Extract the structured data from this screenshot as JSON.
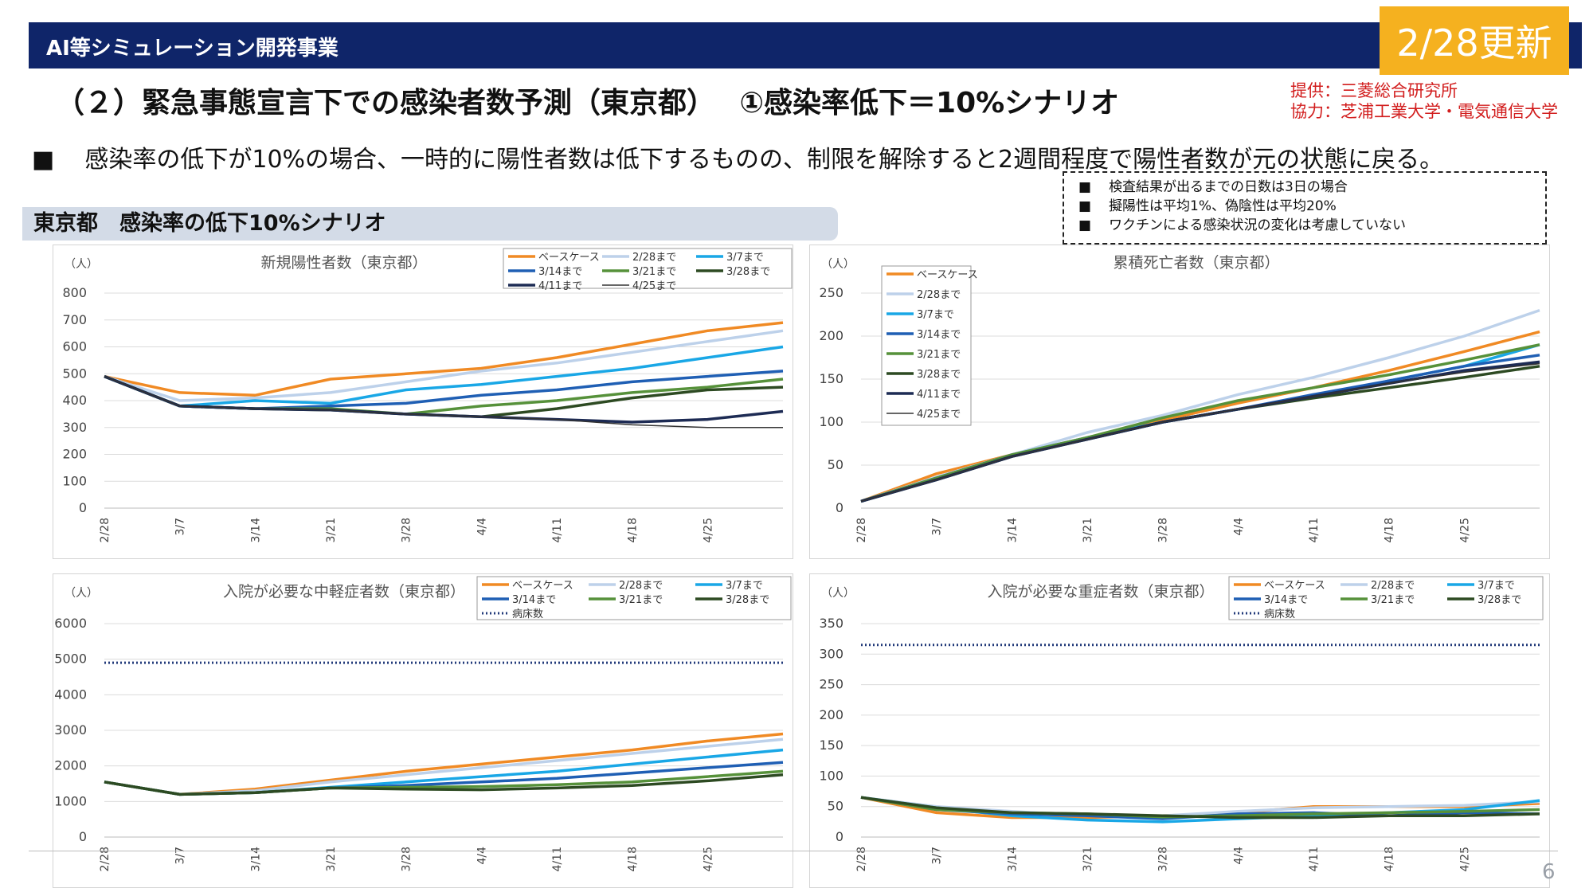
{
  "header": {
    "title": "AI等シミュレーション開発事業",
    "update_badge": "2/28更新"
  },
  "page_title": "（２）緊急事態宣言下での感染者数予測（東京都）　 ①感染率低下＝10%シナリオ",
  "credits": {
    "provider": "提供：三菱総合研究所",
    "cooperation": "協力：芝浦工業大学・電気通信大学"
  },
  "summary": {
    "bullet": "■",
    "text": "感染率の低下が10%の場合、一時的に陽性者数は低下するものの、制限を解除すると2週間程度で陽性者数が元の状態に戻る。"
  },
  "notes": {
    "bullet": "■",
    "items": [
      "検査結果が出るまでの日数は3日の場合",
      "擬陽性は平均1%、偽陰性は平均20%",
      "ワクチンによる感染状況の変化は考慮していない"
    ]
  },
  "section_label": "東京都　感染率の低下10%シナリオ",
  "page_number": "6",
  "colors": {
    "base": "#f08a24",
    "s0228": "#bdd1ea",
    "s0307": "#19a7e6",
    "s0314": "#1f5fb4",
    "s0321": "#56913a",
    "s0328": "#2d4a22",
    "s0411": "#1d2b54",
    "s0425": "#333333",
    "beds": "#223a7a",
    "grid": "#dcdcdc",
    "axis_text": "#444444"
  },
  "chart_data": [
    {
      "type": "line",
      "title": "新規陽性者数（東京都）",
      "unit": "（人）",
      "ylim": [
        0,
        800
      ],
      "yticks": [
        0,
        100,
        200,
        300,
        400,
        500,
        600,
        700,
        800
      ],
      "xlim": [
        0,
        63
      ],
      "x_ticks": [
        "2/28",
        "3/7",
        "3/14",
        "3/21",
        "3/28",
        "4/4",
        "4/11",
        "4/18",
        "4/25"
      ],
      "legend_placement": "top-right",
      "grid": true,
      "series": [
        {
          "name": "ベースケース",
          "color_key": "base",
          "x": [
            0,
            7,
            14,
            21,
            28,
            35,
            42,
            49,
            56,
            63
          ],
          "values": [
            490,
            430,
            420,
            480,
            500,
            520,
            560,
            610,
            660,
            690
          ]
        },
        {
          "name": "2/28まで",
          "color_key": "s0228",
          "x": [
            0,
            7,
            14,
            21,
            28,
            35,
            42,
            49,
            56,
            63
          ],
          "values": [
            490,
            400,
            410,
            430,
            470,
            510,
            540,
            580,
            620,
            660
          ]
        },
        {
          "name": "3/7まで",
          "color_key": "s0307",
          "x": [
            0,
            7,
            14,
            21,
            28,
            35,
            42,
            49,
            56,
            63
          ],
          "values": [
            490,
            380,
            400,
            390,
            440,
            460,
            490,
            520,
            560,
            600
          ]
        },
        {
          "name": "3/14まで",
          "color_key": "s0314",
          "x": [
            0,
            7,
            14,
            21,
            28,
            35,
            42,
            49,
            56,
            63
          ],
          "values": [
            490,
            380,
            370,
            380,
            390,
            420,
            440,
            470,
            490,
            510
          ]
        },
        {
          "name": "3/21まで",
          "color_key": "s0321",
          "x": [
            0,
            7,
            14,
            21,
            28,
            35,
            42,
            49,
            56,
            63
          ],
          "values": [
            490,
            380,
            370,
            370,
            350,
            380,
            400,
            430,
            450,
            480
          ]
        },
        {
          "name": "3/28まで",
          "color_key": "s0328",
          "x": [
            0,
            7,
            14,
            21,
            28,
            35,
            42,
            49,
            56,
            63
          ],
          "values": [
            490,
            380,
            370,
            365,
            350,
            340,
            370,
            410,
            440,
            450
          ]
        },
        {
          "name": "4/11まで",
          "color_key": "s0411",
          "x": [
            0,
            7,
            14,
            21,
            28,
            35,
            42,
            49,
            56,
            63
          ],
          "values": [
            490,
            380,
            370,
            365,
            350,
            340,
            330,
            320,
            330,
            360
          ]
        },
        {
          "name": "4/25まで",
          "color_key": "s0425",
          "thin": true,
          "x": [
            0,
            7,
            14,
            21,
            28,
            35,
            42,
            49,
            56,
            63
          ],
          "values": [
            490,
            380,
            370,
            365,
            350,
            340,
            330,
            310,
            300,
            300
          ]
        }
      ]
    },
    {
      "type": "line",
      "title": "累積死亡者数（東京都）",
      "unit": "（人）",
      "ylim": [
        0,
        250
      ],
      "yticks": [
        0,
        50,
        100,
        150,
        200,
        250
      ],
      "xlim": [
        0,
        63
      ],
      "x_ticks": [
        "2/28",
        "3/7",
        "3/14",
        "3/21",
        "3/28",
        "4/4",
        "4/11",
        "4/18",
        "4/25"
      ],
      "legend_placement": "top-left",
      "grid": true,
      "series": [
        {
          "name": "ベースケース",
          "color_key": "base",
          "x": [
            0,
            7,
            14,
            21,
            28,
            35,
            42,
            49,
            56,
            63
          ],
          "values": [
            8,
            40,
            62,
            82,
            102,
            122,
            140,
            160,
            182,
            205
          ]
        },
        {
          "name": "2/28まで",
          "color_key": "s0228",
          "x": [
            0,
            7,
            14,
            21,
            28,
            35,
            42,
            49,
            56,
            63
          ],
          "values": [
            8,
            36,
            62,
            88,
            108,
            132,
            152,
            175,
            200,
            230
          ]
        },
        {
          "name": "3/7まで",
          "color_key": "s0307",
          "x": [
            0,
            7,
            14,
            21,
            28,
            35,
            42,
            49,
            56,
            63
          ],
          "values": [
            8,
            35,
            62,
            82,
            100,
            115,
            130,
            148,
            165,
            190
          ]
        },
        {
          "name": "3/14まで",
          "color_key": "s0314",
          "x": [
            0,
            7,
            14,
            21,
            28,
            35,
            42,
            49,
            56,
            63
          ],
          "values": [
            8,
            35,
            62,
            80,
            100,
            115,
            132,
            148,
            165,
            178
          ]
        },
        {
          "name": "3/21まで",
          "color_key": "s0321",
          "x": [
            0,
            7,
            14,
            21,
            28,
            35,
            42,
            49,
            56,
            63
          ],
          "values": [
            8,
            35,
            62,
            82,
            105,
            125,
            140,
            155,
            172,
            190
          ]
        },
        {
          "name": "3/28まで",
          "color_key": "s0328",
          "x": [
            0,
            7,
            14,
            21,
            28,
            35,
            42,
            49,
            56,
            63
          ],
          "values": [
            8,
            33,
            60,
            80,
            100,
            115,
            128,
            140,
            152,
            165
          ]
        },
        {
          "name": "4/11まで",
          "color_key": "s0411",
          "x": [
            0,
            7,
            14,
            21,
            28,
            35,
            42,
            49,
            56,
            63
          ],
          "values": [
            8,
            33,
            60,
            80,
            100,
            115,
            130,
            145,
            160,
            170
          ]
        },
        {
          "name": "4/25まで",
          "color_key": "s0425",
          "thin": true,
          "x": [
            0,
            7,
            14,
            21,
            28,
            35,
            42,
            49,
            56,
            63
          ],
          "values": [
            8,
            33,
            60,
            80,
            100,
            115,
            130,
            145,
            158,
            168
          ]
        }
      ]
    },
    {
      "type": "line",
      "title": "入院が必要な中軽症者数（東京都）",
      "unit": "（人）",
      "ylim": [
        0,
        6000
      ],
      "yticks": [
        0,
        1000,
        2000,
        3000,
        4000,
        5000,
        6000
      ],
      "xlim": [
        0,
        63
      ],
      "x_ticks": [
        "2/28",
        "3/7",
        "3/14",
        "3/21",
        "3/28",
        "4/4",
        "4/11",
        "4/18",
        "4/25"
      ],
      "legend_placement": "top-right",
      "grid": true,
      "series": [
        {
          "name": "ベースケース",
          "color_key": "base",
          "x": [
            0,
            7,
            14,
            21,
            28,
            35,
            42,
            49,
            56,
            63
          ],
          "values": [
            1550,
            1200,
            1350,
            1600,
            1850,
            2050,
            2250,
            2450,
            2700,
            2900
          ]
        },
        {
          "name": "2/28まで",
          "color_key": "s0228",
          "x": [
            0,
            7,
            14,
            21,
            28,
            35,
            42,
            49,
            56,
            63
          ],
          "values": [
            1550,
            1200,
            1300,
            1550,
            1750,
            1950,
            2150,
            2350,
            2550,
            2750
          ]
        },
        {
          "name": "3/7まで",
          "color_key": "s0307",
          "x": [
            0,
            7,
            14,
            21,
            28,
            35,
            42,
            49,
            56,
            63
          ],
          "values": [
            1550,
            1200,
            1250,
            1400,
            1550,
            1700,
            1850,
            2050,
            2250,
            2450
          ]
        },
        {
          "name": "3/14まで",
          "color_key": "s0314",
          "x": [
            0,
            7,
            14,
            21,
            28,
            35,
            42,
            49,
            56,
            63
          ],
          "values": [
            1550,
            1200,
            1250,
            1380,
            1450,
            1550,
            1650,
            1800,
            1950,
            2100
          ]
        },
        {
          "name": "3/21まで",
          "color_key": "s0321",
          "x": [
            0,
            7,
            14,
            21,
            28,
            35,
            42,
            49,
            56,
            63
          ],
          "values": [
            1550,
            1200,
            1250,
            1380,
            1400,
            1420,
            1470,
            1550,
            1700,
            1850
          ]
        },
        {
          "name": "3/28まで",
          "color_key": "s0328",
          "x": [
            0,
            7,
            14,
            21,
            28,
            35,
            42,
            49,
            56,
            63
          ],
          "values": [
            1550,
            1200,
            1250,
            1380,
            1350,
            1330,
            1380,
            1450,
            1580,
            1750
          ]
        },
        {
          "name": "病床数",
          "color_key": "beds",
          "dotted": true,
          "x": [
            0,
            63
          ],
          "values": [
            4900,
            4900
          ]
        }
      ]
    },
    {
      "type": "line",
      "title": "入院が必要な重症者数（東京都）",
      "unit": "（人）",
      "ylim": [
        0,
        350
      ],
      "yticks": [
        0,
        50,
        100,
        150,
        200,
        250,
        300,
        350
      ],
      "xlim": [
        0,
        63
      ],
      "x_ticks": [
        "2/28",
        "3/7",
        "3/14",
        "3/21",
        "3/28",
        "4/4",
        "4/11",
        "4/18",
        "4/25"
      ],
      "legend_placement": "top-right",
      "grid": true,
      "series": [
        {
          "name": "ベースケース",
          "color_key": "base",
          "x": [
            0,
            7,
            14,
            21,
            28,
            35,
            42,
            49,
            56,
            63
          ],
          "values": [
            65,
            40,
            32,
            32,
            35,
            40,
            50,
            50,
            50,
            55
          ]
        },
        {
          "name": "2/28まで",
          "color_key": "s0228",
          "x": [
            0,
            7,
            14,
            21,
            28,
            35,
            42,
            49,
            56,
            63
          ],
          "values": [
            65,
            50,
            42,
            35,
            35,
            42,
            48,
            50,
            52,
            58
          ]
        },
        {
          "name": "3/7まで",
          "color_key": "s0307",
          "x": [
            0,
            7,
            14,
            21,
            28,
            35,
            42,
            49,
            56,
            63
          ],
          "values": [
            65,
            48,
            35,
            28,
            25,
            30,
            35,
            40,
            45,
            60
          ]
        },
        {
          "name": "3/14まで",
          "color_key": "s0314",
          "x": [
            0,
            7,
            14,
            21,
            28,
            35,
            42,
            49,
            56,
            63
          ],
          "values": [
            65,
            45,
            38,
            35,
            30,
            38,
            40,
            35,
            40,
            38
          ]
        },
        {
          "name": "3/21まで",
          "color_key": "s0321",
          "x": [
            0,
            7,
            14,
            21,
            28,
            35,
            42,
            49,
            56,
            63
          ],
          "values": [
            65,
            45,
            40,
            38,
            33,
            35,
            38,
            40,
            42,
            45
          ]
        },
        {
          "name": "3/28まで",
          "color_key": "s0328",
          "x": [
            0,
            7,
            14,
            21,
            28,
            35,
            42,
            49,
            56,
            63
          ],
          "values": [
            65,
            48,
            40,
            38,
            35,
            32,
            32,
            35,
            35,
            38
          ]
        },
        {
          "name": "病床数",
          "color_key": "beds",
          "dotted": true,
          "x": [
            0,
            63
          ],
          "values": [
            315,
            315
          ]
        }
      ]
    }
  ]
}
